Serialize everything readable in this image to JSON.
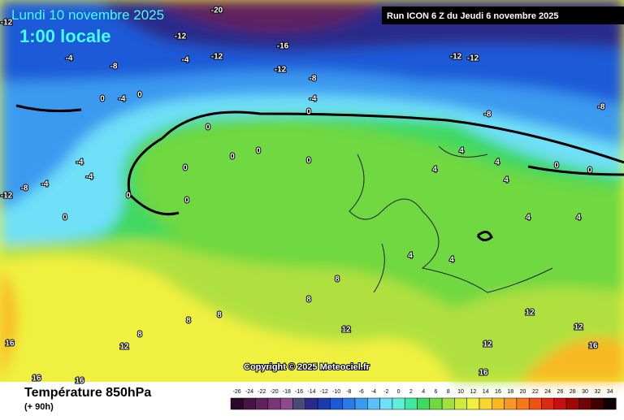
{
  "header": {
    "date": "Lundi 10 novembre 2025",
    "time": "1:00 locale",
    "run": "Run ICON 6 Z du Jeudi 6 novembre 2025"
  },
  "copyright": "Copyright © 2025 Meteociel.fr",
  "footer": {
    "title": "Température 850hPa",
    "lead": "(+ 90h)"
  },
  "map_labels": [
    -20,
    -12,
    -16,
    -12,
    -8,
    -4,
    -4,
    -12,
    -8,
    -12,
    -12,
    -8,
    -8,
    -4,
    -4,
    0,
    0,
    0,
    0,
    0,
    0,
    0,
    0,
    0,
    0,
    0,
    -4,
    -4,
    -4,
    -8,
    -12,
    4,
    4,
    4,
    4,
    4,
    4,
    4,
    4,
    8,
    8,
    8,
    8,
    8,
    12,
    12,
    12,
    12,
    12,
    16,
    16,
    16,
    16,
    16,
    0,
    0,
    -12
  ],
  "scale": {
    "labels": [
      -26,
      -24,
      -22,
      -20,
      -18,
      -16,
      -14,
      -12,
      -10,
      -8,
      -6,
      -4,
      -2,
      0,
      2,
      4,
      6,
      8,
      10,
      12,
      14,
      16,
      18,
      20,
      22,
      24,
      26,
      28,
      30,
      32,
      34
    ],
    "colors": [
      "#2a0828",
      "#451545",
      "#5e225e",
      "#7a347a",
      "#8c4a8c",
      "#4a4a7a",
      "#2a2a8a",
      "#1a3ab0",
      "#1a5ad8",
      "#2a7ae8",
      "#3a9af0",
      "#5ac0f8",
      "#70e0f8",
      "#60f0d8",
      "#40e8a0",
      "#40d860",
      "#70d840",
      "#a0e040",
      "#d0e840",
      "#f0f040",
      "#f8d830",
      "#f8b820",
      "#f89820",
      "#f87818",
      "#f05010",
      "#e02810",
      "#c81010",
      "#a00808",
      "#700404",
      "#400000",
      "#100000"
    ]
  }
}
